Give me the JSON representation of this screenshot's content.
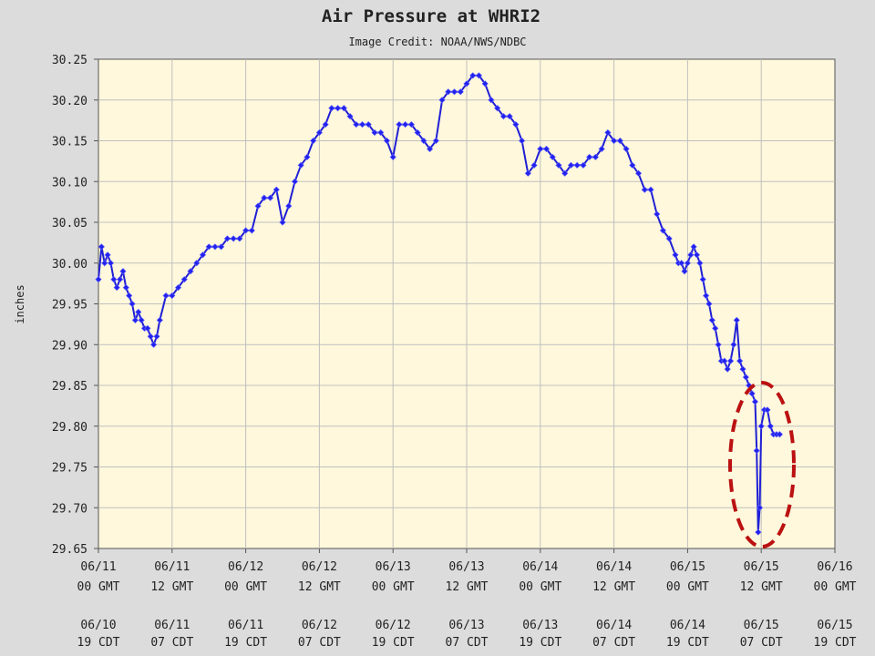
{
  "chart_data": {
    "type": "line",
    "title": "Air Pressure at WHRI2",
    "subtitle": "Image Credit: NOAA/NWS/NDBC",
    "ylabel": "inches",
    "ylim": [
      29.65,
      30.25
    ],
    "y_ticks": [
      "30.25",
      "30.20",
      "30.15",
      "30.10",
      "30.05",
      "30.00",
      "29.95",
      "29.90",
      "29.85",
      "29.80",
      "29.75",
      "29.70",
      "29.65"
    ],
    "x_unit": "hours since 06/11 00 GMT",
    "xlim": [
      0,
      120
    ],
    "x_ticks": [
      {
        "x": 0,
        "gmt_date": "06/11",
        "gmt_time": "00 GMT",
        "cdt_date": "06/10",
        "cdt_time": "19 CDT"
      },
      {
        "x": 12,
        "gmt_date": "06/11",
        "gmt_time": "12 GMT",
        "cdt_date": "06/11",
        "cdt_time": "07 CDT"
      },
      {
        "x": 24,
        "gmt_date": "06/12",
        "gmt_time": "00 GMT",
        "cdt_date": "06/11",
        "cdt_time": "19 CDT"
      },
      {
        "x": 36,
        "gmt_date": "06/12",
        "gmt_time": "12 GMT",
        "cdt_date": "06/12",
        "cdt_time": "07 CDT"
      },
      {
        "x": 48,
        "gmt_date": "06/13",
        "gmt_time": "00 GMT",
        "cdt_date": "06/12",
        "cdt_time": "19 CDT"
      },
      {
        "x": 60,
        "gmt_date": "06/13",
        "gmt_time": "12 GMT",
        "cdt_date": "06/13",
        "cdt_time": "07 CDT"
      },
      {
        "x": 72,
        "gmt_date": "06/14",
        "gmt_time": "00 GMT",
        "cdt_date": "06/13",
        "cdt_time": "19 CDT"
      },
      {
        "x": 84,
        "gmt_date": "06/14",
        "gmt_time": "12 GMT",
        "cdt_date": "06/14",
        "cdt_time": "07 CDT"
      },
      {
        "x": 96,
        "gmt_date": "06/15",
        "gmt_time": "00 GMT",
        "cdt_date": "06/14",
        "cdt_time": "19 CDT"
      },
      {
        "x": 108,
        "gmt_date": "06/15",
        "gmt_time": "12 GMT",
        "cdt_date": "06/15",
        "cdt_time": "07 CDT"
      },
      {
        "x": 120,
        "gmt_date": "06/16",
        "gmt_time": "00 GMT",
        "cdt_date": "06/15",
        "cdt_time": "19 CDT"
      }
    ],
    "grid": true,
    "colors": {
      "line": "#1f1fd6",
      "marker": "#2222ee",
      "plot_bg": "#fff8dc",
      "grid": "#bfbfbf",
      "highlight": "#bb1111"
    },
    "series": [
      {
        "x": [
          0,
          0.5,
          1,
          1.5,
          2,
          2.5,
          3,
          3.5,
          4,
          4.5,
          5,
          5.5,
          6,
          6.5,
          7,
          7.5,
          8,
          8.5,
          9,
          9.5,
          10,
          11,
          12,
          13,
          14,
          15,
          16,
          17,
          18,
          19,
          20,
          21,
          22,
          23,
          24,
          25,
          26,
          27,
          28,
          29,
          30,
          31,
          32,
          33,
          34,
          35,
          36,
          37,
          38,
          39,
          40,
          41,
          42,
          43,
          44,
          45,
          46,
          47,
          48,
          49,
          50,
          51,
          52,
          53,
          54,
          55,
          56,
          57,
          58,
          59,
          60,
          61,
          62,
          63,
          64,
          65,
          66,
          67,
          68,
          69,
          70,
          71,
          72,
          73,
          74,
          75,
          76,
          77,
          78,
          79,
          80,
          81,
          82,
          83,
          84,
          85,
          86,
          87,
          88,
          89,
          90,
          91,
          92,
          93,
          94,
          94.5,
          95,
          95.5,
          96,
          96.5,
          97,
          97.5,
          98,
          98.5,
          99,
          99.5,
          100,
          100.5,
          101,
          101.5,
          102,
          102.5,
          103,
          103.5,
          104,
          104.5,
          105,
          105.5,
          106,
          106.5,
          107,
          107.25,
          107.5,
          107.75,
          108,
          108.5,
          109,
          109.5,
          110,
          110.5,
          111
        ],
        "y": [
          29.98,
          30.02,
          30.0,
          30.01,
          30.0,
          29.98,
          29.97,
          29.98,
          29.99,
          29.97,
          29.96,
          29.95,
          29.93,
          29.94,
          29.93,
          29.92,
          29.92,
          29.91,
          29.9,
          29.91,
          29.93,
          29.96,
          29.96,
          29.97,
          29.98,
          29.99,
          30.0,
          30.01,
          30.02,
          30.02,
          30.02,
          30.03,
          30.03,
          30.03,
          30.04,
          30.04,
          30.07,
          30.08,
          30.08,
          30.09,
          30.05,
          30.07,
          30.1,
          30.12,
          30.13,
          30.15,
          30.16,
          30.17,
          30.19,
          30.19,
          30.19,
          30.18,
          30.17,
          30.17,
          30.17,
          30.16,
          30.16,
          30.15,
          30.13,
          30.17,
          30.17,
          30.17,
          30.16,
          30.15,
          30.14,
          30.15,
          30.2,
          30.21,
          30.21,
          30.21,
          30.22,
          30.23,
          30.23,
          30.22,
          30.2,
          30.19,
          30.18,
          30.18,
          30.17,
          30.15,
          30.11,
          30.12,
          30.14,
          30.14,
          30.13,
          30.12,
          30.11,
          30.12,
          30.12,
          30.12,
          30.13,
          30.13,
          30.14,
          30.16,
          30.15,
          30.15,
          30.14,
          30.12,
          30.11,
          30.09,
          30.09,
          30.06,
          30.04,
          30.03,
          30.01,
          30.0,
          30.0,
          29.99,
          30.0,
          30.01,
          30.02,
          30.01,
          30.0,
          29.98,
          29.96,
          29.95,
          29.93,
          29.92,
          29.9,
          29.88,
          29.88,
          29.87,
          29.88,
          29.9,
          29.93,
          29.88,
          29.87,
          29.86,
          29.85,
          29.84,
          29.83,
          29.77,
          29.67,
          29.7,
          29.8,
          29.82,
          29.82,
          29.8,
          29.79,
          29.79,
          29.79
        ]
      }
    ],
    "annotation": {
      "shape": "dashed ellipse",
      "around_x": [
        106,
        112
      ],
      "around_y": [
        29.66,
        29.85
      ]
    }
  }
}
